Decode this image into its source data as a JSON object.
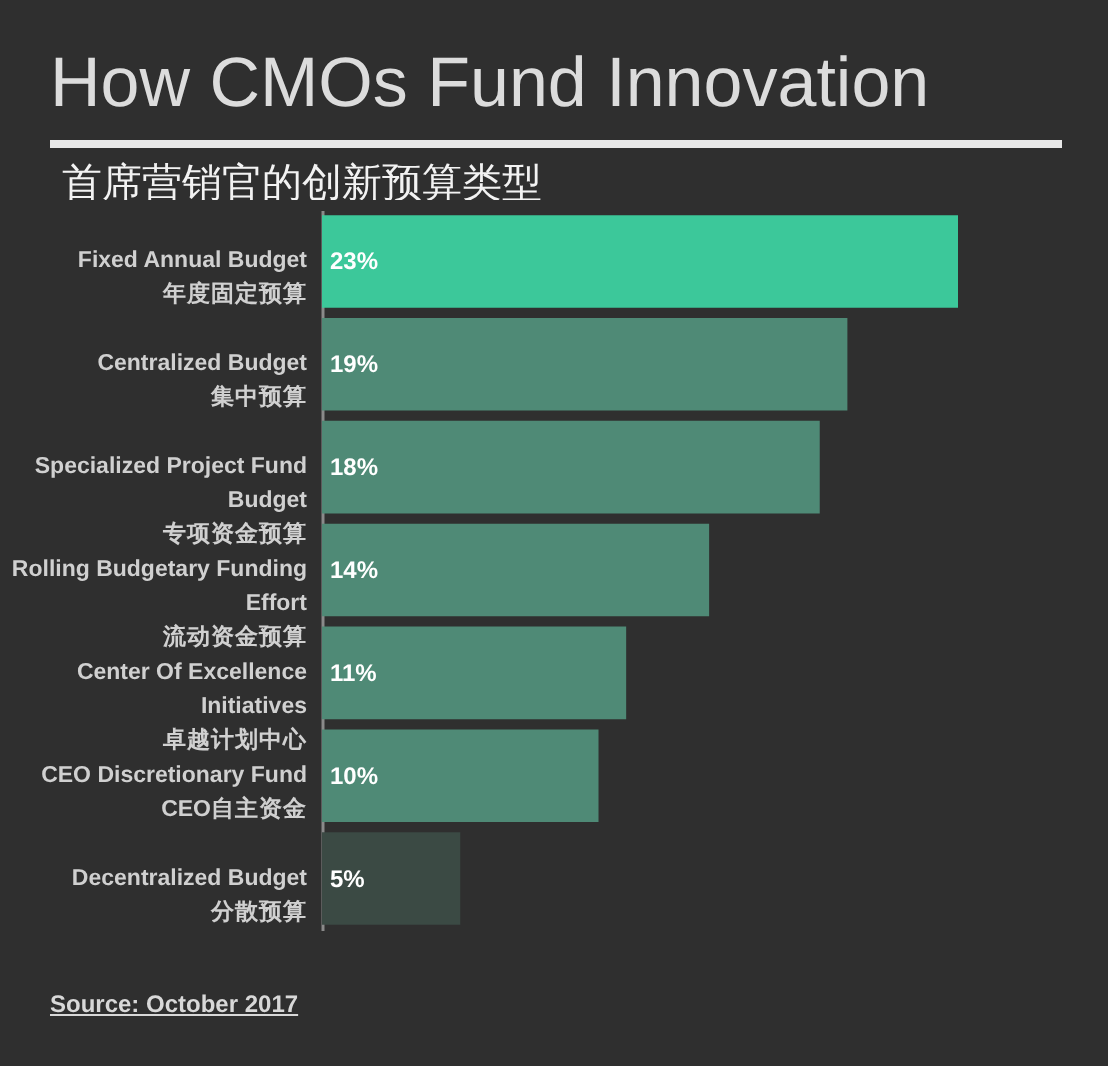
{
  "chart_data": {
    "type": "bar",
    "orientation": "horizontal",
    "title": "How CMOs Fund Innovation",
    "subtitle": "首席营销官的创新预算类型",
    "categories": [
      "Fixed Annual Budget\n年度固定预算",
      "Centralized Budget\n集中预算",
      "Specialized Project Fund Budget\n专项资金预算",
      "Rolling Budgetary Funding Effort\n流动资金预算",
      "Center Of Excellence Initiatives\n卓越计划中心",
      "CEO Discretionary Fund\nCEO自主资金",
      "Decentralized Budget\n分散预算"
    ],
    "values": [
      23,
      19,
      18,
      14,
      11,
      10,
      5
    ],
    "value_labels": [
      "23%",
      "19%",
      "18%",
      "14%",
      "11%",
      "10%",
      "5%"
    ],
    "colors": [
      "#3cc89a",
      "#4f8a76",
      "#4f8a76",
      "#4f8a76",
      "#4f8a76",
      "#4f8a76",
      "#3b4a44"
    ],
    "annotations": [
      "Source: October 2017"
    ]
  }
}
